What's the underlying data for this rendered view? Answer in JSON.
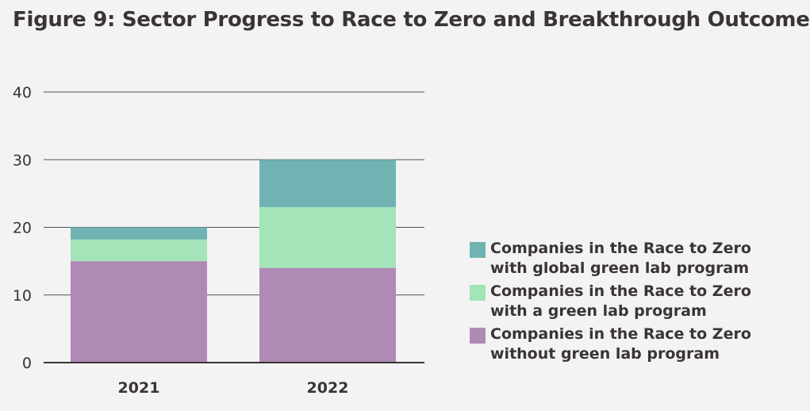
{
  "chart_data": {
    "type": "bar",
    "stacked": true,
    "title": "Figure 9: Sector Progress to Race to Zero and Breakthrough Outcome",
    "categories": [
      "2021",
      "2022"
    ],
    "ylim": [
      0,
      40
    ],
    "yticks": [
      0,
      10,
      20,
      30,
      40
    ],
    "grid": true,
    "legend_position": "right",
    "series": [
      {
        "name": "Companies in the Race to Zero without green lab program",
        "lines": [
          "Companies in the Race to Zero",
          "without green lab program"
        ],
        "color": "#ae8ab5",
        "values": [
          15,
          14
        ]
      },
      {
        "name": "Companies in the Race to Zero with a green lab program",
        "lines": [
          "Companies in the Race to Zero",
          "with a green lab program"
        ],
        "color": "#a3e4b8",
        "values": [
          3.2,
          9
        ]
      },
      {
        "name": "Companies in the Race to Zero with global green lab program",
        "lines": [
          "Companies in the Race to Zero",
          "with global green lab program"
        ],
        "color": "#6fb4b2",
        "values": [
          1.8,
          7
        ]
      }
    ]
  }
}
